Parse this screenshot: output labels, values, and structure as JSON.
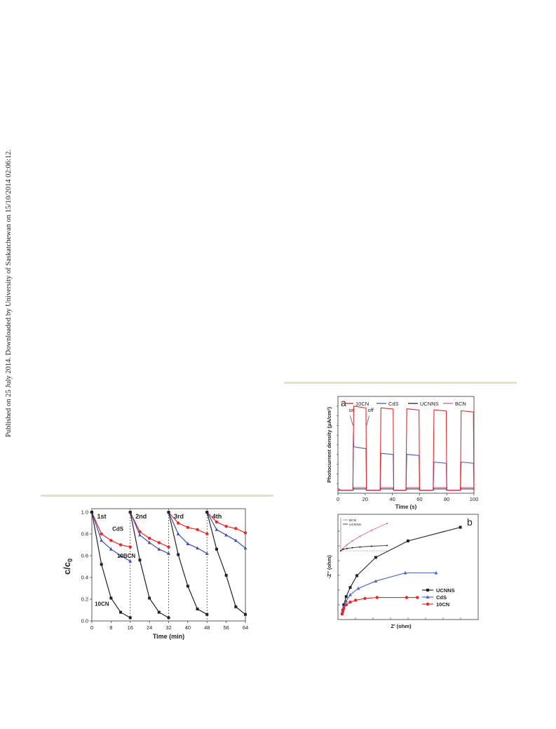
{
  "page": {
    "sidenote": "Published on 25 July 2014. Downloaded by University of Saskatchewan on 15/10/2014 02:06:12."
  },
  "chart_data": [
    {
      "type": "line",
      "xlabel": "Time (min)",
      "ylabel": "c/c0",
      "xlim": [
        0,
        64
      ],
      "ylim": [
        0,
        1.0
      ],
      "xticks": [
        0,
        8,
        16,
        24,
        32,
        40,
        48,
        56,
        64
      ],
      "yticks": [
        0.0,
        0.2,
        0.4,
        0.6,
        0.8,
        1.0
      ],
      "cycle_labels": [
        {
          "text": "1st",
          "x": 2.2,
          "y": 0.96
        },
        {
          "text": "2nd",
          "x": 18.2,
          "y": 0.96
        },
        {
          "text": "3rd",
          "x": 34.2,
          "y": 0.96
        },
        {
          "text": "4th",
          "x": 50.2,
          "y": 0.96
        }
      ],
      "cycle_boundaries": [
        16,
        32,
        48
      ],
      "series": [
        {
          "name": "CdS",
          "color": "#e8282a",
          "marker": "circle",
          "label_pos": [
            8.5,
            0.83
          ],
          "segments": [
            [
              [
                0,
                1.0
              ],
              [
                4,
                0.8
              ],
              [
                8,
                0.74
              ],
              [
                12,
                0.7
              ],
              [
                16,
                0.68
              ]
            ],
            [
              [
                16,
                1.0
              ],
              [
                20,
                0.82
              ],
              [
                24,
                0.76
              ],
              [
                28,
                0.72
              ],
              [
                32,
                0.68
              ]
            ],
            [
              [
                32,
                1.0
              ],
              [
                36,
                0.9
              ],
              [
                40,
                0.86
              ],
              [
                44,
                0.84
              ],
              [
                48,
                0.8
              ]
            ],
            [
              [
                48,
                1.0
              ],
              [
                52,
                0.91
              ],
              [
                56,
                0.87
              ],
              [
                60,
                0.85
              ],
              [
                64,
                0.81
              ]
            ]
          ]
        },
        {
          "name": "10BCN",
          "color": "#3c4fb0",
          "marker": "triangle",
          "label_pos": [
            10.5,
            0.58
          ],
          "segments": [
            [
              [
                0,
                1.0
              ],
              [
                4,
                0.74
              ],
              [
                8,
                0.66
              ],
              [
                12,
                0.6
              ],
              [
                16,
                0.55
              ]
            ],
            [
              [
                16,
                1.0
              ],
              [
                20,
                0.79
              ],
              [
                24,
                0.72
              ],
              [
                28,
                0.66
              ],
              [
                32,
                0.62
              ]
            ],
            [
              [
                32,
                1.0
              ],
              [
                36,
                0.8
              ],
              [
                40,
                0.71
              ],
              [
                44,
                0.67
              ],
              [
                48,
                0.62
              ]
            ],
            [
              [
                48,
                1.0
              ],
              [
                52,
                0.84
              ],
              [
                56,
                0.79
              ],
              [
                60,
                0.74
              ],
              [
                64,
                0.67
              ]
            ]
          ]
        },
        {
          "name": "10CN",
          "color": "#222222",
          "marker": "square",
          "label_pos": [
            1.2,
            0.14
          ],
          "segments": [
            [
              [
                0,
                1.0
              ],
              [
                4,
                0.52
              ],
              [
                8,
                0.21
              ],
              [
                12,
                0.08
              ],
              [
                16,
                0.03
              ]
            ],
            [
              [
                16,
                1.0
              ],
              [
                20,
                0.56
              ],
              [
                24,
                0.21
              ],
              [
                28,
                0.08
              ],
              [
                32,
                0.03
              ]
            ],
            [
              [
                32,
                1.0
              ],
              [
                36,
                0.61
              ],
              [
                40,
                0.32
              ],
              [
                44,
                0.11
              ],
              [
                48,
                0.06
              ]
            ],
            [
              [
                48,
                1.0
              ],
              [
                52,
                0.66
              ],
              [
                56,
                0.42
              ],
              [
                60,
                0.13
              ],
              [
                64,
                0.06
              ]
            ]
          ]
        }
      ]
    },
    {
      "type": "line",
      "panel_label": "a",
      "xlabel": "Time (s)",
      "ylabel": "Photocurrent density (μA/cm²)",
      "xlim": [
        0,
        100
      ],
      "ylim": [
        0,
        1.0
      ],
      "xticks": [
        0,
        20,
        40,
        60,
        80,
        100
      ],
      "annotations": [
        {
          "text": "on",
          "x": 8,
          "y": 0.84
        },
        {
          "text": "off",
          "x": 22,
          "y": 0.84
        }
      ],
      "legend": [
        "10CN",
        "CdS",
        "UCNNS",
        "BCN"
      ],
      "on_intervals": [
        [
          11,
          21
        ],
        [
          31,
          41
        ],
        [
          50,
          60
        ],
        [
          70,
          80
        ],
        [
          90,
          100
        ]
      ],
      "series": [
        {
          "name": "10CN",
          "color": "#e8282a",
          "on_levels": [
            0.88,
            0.87,
            0.86,
            0.85,
            0.84
          ],
          "off_level": 0.03,
          "initial": 0.05
        },
        {
          "name": "CdS",
          "color": "#4a63c4",
          "on_levels": [
            0.46,
            0.4,
            0.39,
            0.31,
            0.31
          ],
          "off_level": 0.03,
          "spike": 0.62
        },
        {
          "name": "UCNNS",
          "color": "#333333",
          "on_levels": [
            0.045,
            0.045,
            0.045,
            0.045,
            0.045
          ],
          "off_level": 0.03
        },
        {
          "name": "BCN",
          "color": "#d76aa8",
          "on_levels": [
            0.06,
            0.06,
            0.06,
            0.06,
            0.06
          ],
          "off_level": 0.03
        }
      ]
    },
    {
      "type": "scatter",
      "panel_label": "b",
      "xlabel": "Z' (ohm)",
      "ylabel": "-Z'' (ohm)",
      "legend": [
        "UCNNS",
        "CdS",
        "10CN"
      ],
      "series": [
        {
          "name": "UCNNS",
          "color": "#222222",
          "marker": "square",
          "points": [
            [
              0,
              0
            ],
            [
              0.5,
              4
            ],
            [
              1.2,
              10
            ],
            [
              3,
              19
            ],
            [
              6,
              29
            ],
            [
              11,
              42
            ],
            [
              25,
              62
            ],
            [
              49,
              80
            ],
            [
              88,
              95
            ]
          ]
        },
        {
          "name": "CdS",
          "color": "#4a63c4",
          "marker": "triangle",
          "points": [
            [
              0,
              0
            ],
            [
              0.5,
              4
            ],
            [
              1.2,
              8
            ],
            [
              3,
              14
            ],
            [
              6,
              21
            ],
            [
              12,
              28
            ],
            [
              25,
              36
            ],
            [
              47,
              45
            ],
            [
              70,
              45
            ]
          ]
        },
        {
          "name": "10CN",
          "color": "#e8282a",
          "marker": "circle",
          "points": [
            [
              0,
              0
            ],
            [
              0.5,
              3
            ],
            [
              1.2,
              6
            ],
            [
              3,
              10
            ],
            [
              6,
              13
            ],
            [
              10,
              15
            ],
            [
              17,
              17
            ],
            [
              26,
              18
            ],
            [
              48,
              18
            ],
            [
              56,
              18
            ],
            [
              45,
              18
            ]
          ]
        }
      ],
      "inset": {
        "legend": [
          "BCN",
          "UCNNS"
        ],
        "series": [
          {
            "name": "BCN",
            "color": "#d76aa8",
            "points": [
              [
                0,
                0
              ],
              [
                3,
                3
              ],
              [
                8,
                8
              ],
              [
                15,
                13
              ],
              [
                25,
                19
              ],
              [
                40,
                27
              ],
              [
                60,
                36
              ]
            ]
          },
          {
            "name": "UCNNS",
            "color": "#333333",
            "points": [
              [
                0,
                0
              ],
              [
                3,
                2
              ],
              [
                8,
                3
              ],
              [
                15,
                4
              ],
              [
                25,
                5
              ],
              [
                40,
                6
              ],
              [
                60,
                7
              ]
            ]
          }
        ]
      }
    }
  ]
}
